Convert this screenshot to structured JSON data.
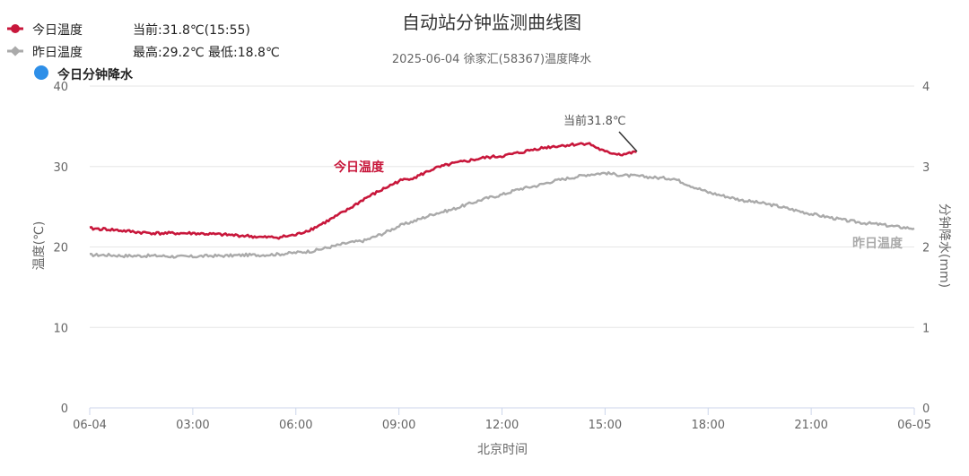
{
  "chart_data": {
    "type": "line",
    "title": "自动站分钟监测曲线图",
    "subtitle": "2025-06-04 徐家汇(58367)温度降水",
    "xlabel": "北京时间",
    "ylabel": "温度(℃)",
    "y2label": "分钟降水(mm)",
    "x_ticks": [
      "06-04",
      "03:00",
      "06:00",
      "09:00",
      "12:00",
      "15:00",
      "18:00",
      "21:00",
      "06-05"
    ],
    "y_ticks": [
      "0",
      "10",
      "20",
      "30",
      "40"
    ],
    "y2_ticks": [
      "0",
      "1",
      "2",
      "3",
      "4"
    ],
    "ylim": [
      0,
      40
    ],
    "y2lim": [
      0,
      4
    ],
    "grid": true,
    "legend_position": "top-left",
    "legend": [
      {
        "label": "今日温度",
        "info": "当前:31.8℃(15:55)",
        "color": "#c8173b",
        "marker": "line-dot"
      },
      {
        "label": "昨日温度",
        "info": "最高:29.2℃ 最低:18.8℃",
        "color": "#aaaaaa",
        "marker": "line-diamond"
      },
      {
        "label": "今日分钟降水",
        "info": "",
        "color": "#2e8fe8",
        "marker": "dot"
      }
    ],
    "annotations": {
      "current": "当前31.8℃",
      "today_label": "今日温度",
      "yesterday_label": "昨日温度"
    },
    "series": [
      {
        "name": "今日温度",
        "color": "#c8173b",
        "x": [
          "00:00",
          "00:30",
          "01:00",
          "01:30",
          "02:00",
          "02:30",
          "03:00",
          "03:30",
          "04:00",
          "04:30",
          "05:00",
          "05:30",
          "06:00",
          "06:30",
          "07:00",
          "07:30",
          "08:00",
          "08:30",
          "09:00",
          "09:30",
          "10:00",
          "10:30",
          "11:00",
          "11:30",
          "12:00",
          "12:30",
          "13:00",
          "13:30",
          "14:00",
          "14:30",
          "15:00",
          "15:30",
          "15:55"
        ],
        "values": [
          22.3,
          22.2,
          22.0,
          21.8,
          21.7,
          21.7,
          21.7,
          21.6,
          21.5,
          21.4,
          21.2,
          21.2,
          21.5,
          22.3,
          23.4,
          24.6,
          26.0,
          27.1,
          28.2,
          28.7,
          29.7,
          30.3,
          30.7,
          31.1,
          31.3,
          31.7,
          32.2,
          32.5,
          32.7,
          32.9,
          31.8,
          31.5,
          31.8
        ]
      },
      {
        "name": "昨日温度",
        "color": "#aaaaaa",
        "x": [
          "00:00",
          "00:30",
          "01:00",
          "01:30",
          "02:00",
          "02:30",
          "03:00",
          "03:30",
          "04:00",
          "04:30",
          "05:00",
          "05:30",
          "06:00",
          "06:30",
          "07:00",
          "07:30",
          "08:00",
          "08:30",
          "09:00",
          "09:30",
          "10:00",
          "10:30",
          "11:00",
          "11:30",
          "12:00",
          "12:30",
          "13:00",
          "13:30",
          "14:00",
          "14:30",
          "15:00",
          "15:30",
          "16:00",
          "16:30",
          "17:00",
          "17:30",
          "18:00",
          "18:30",
          "19:00",
          "19:30",
          "20:00",
          "20:30",
          "21:00",
          "21:30",
          "22:00",
          "22:30",
          "23:00",
          "23:30",
          "24:00"
        ],
        "values": [
          19.0,
          19.0,
          18.9,
          18.9,
          18.9,
          18.8,
          18.8,
          18.9,
          18.9,
          19.0,
          19.0,
          19.1,
          19.3,
          19.5,
          20.0,
          20.5,
          20.8,
          21.6,
          22.6,
          23.3,
          24.1,
          24.6,
          25.3,
          26.0,
          26.5,
          27.2,
          27.6,
          28.2,
          28.6,
          29.0,
          29.2,
          28.9,
          28.8,
          28.6,
          28.5,
          27.6,
          26.8,
          26.3,
          25.8,
          25.5,
          25.1,
          24.6,
          24.1,
          23.7,
          23.3,
          23.0,
          22.8,
          22.5,
          22.3
        ]
      },
      {
        "name": "今日分钟降水",
        "color": "#2e8fe8",
        "x": [],
        "values": []
      }
    ]
  }
}
